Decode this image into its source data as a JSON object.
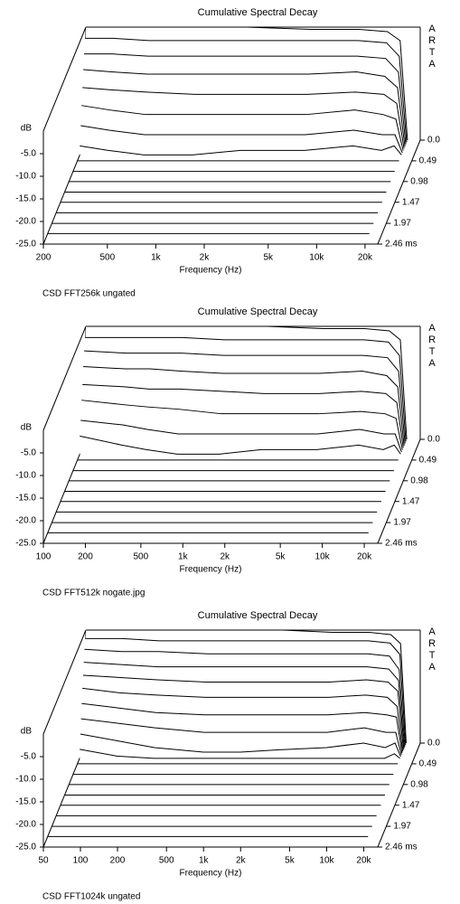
{
  "chart_data": [
    {
      "type": "waterfall",
      "title": "Cumulative Spectral Decay",
      "caption": "CSD FFT256k ungated",
      "watermark": "ARTA",
      "x_label": "Frequency (Hz)",
      "y_label": "dB",
      "log_x": true,
      "x": [
        200,
        300,
        500,
        1000,
        2000,
        5000,
        10000,
        15000,
        18000,
        20000
      ],
      "xlim": [
        200,
        24000
      ],
      "xticks": [
        200,
        500,
        {
          "value": 1000,
          "label": "1k"
        },
        {
          "value": 2000,
          "label": "2k"
        },
        {
          "value": 5000,
          "label": "5k"
        },
        {
          "value": 10000,
          "label": "10k"
        },
        {
          "value": 20000,
          "label": "20k"
        }
      ],
      "ylim": [
        -25,
        0
      ],
      "yticks": [
        {
          "value": -5,
          "label": "-5.0"
        },
        {
          "value": -10,
          "label": "-10.0"
        },
        {
          "value": -15,
          "label": "-15.0"
        },
        {
          "value": -20,
          "label": "-20.0"
        },
        {
          "value": -25,
          "label": "-25.0"
        }
      ],
      "zlim": [
        0,
        2.46
      ],
      "zticks": [
        {
          "value": 0,
          "label": "0.0"
        },
        0.49,
        0.98,
        1.47,
        1.97,
        {
          "value": 2.46,
          "label": "2.46 ms"
        }
      ],
      "z": [
        0,
        0.05,
        0.1,
        0.15,
        0.2,
        0.25,
        0.3,
        0.35,
        0.49,
        0.74,
        0.98,
        1.23,
        1.47,
        1.72,
        1.97,
        2.21,
        2.46
      ],
      "series": [
        {
          "values": [
            0,
            0,
            0,
            0,
            0,
            -0.5,
            -0.5,
            -1,
            -3,
            -25
          ]
        },
        {
          "values": [
            -2,
            -2,
            -2.5,
            -2.5,
            -2.5,
            -2.5,
            -2.5,
            -3,
            -6,
            -25
          ]
        },
        {
          "values": [
            -5,
            -5,
            -5.5,
            -5.5,
            -5.5,
            -5.5,
            -5.5,
            -6,
            -9,
            -25
          ]
        },
        {
          "values": [
            -8,
            -8.5,
            -9,
            -9,
            -9,
            -9,
            -8.5,
            -9.5,
            -12,
            -25
          ]
        },
        {
          "values": [
            -11.5,
            -12,
            -12.5,
            -13,
            -13,
            -13,
            -12.5,
            -13,
            -15,
            -25
          ]
        },
        {
          "values": [
            -15,
            -16,
            -17,
            -17,
            -17,
            -17,
            -16,
            -17,
            -18,
            -25
          ]
        },
        {
          "values": [
            -19,
            -20,
            -21,
            -21,
            -21,
            -21,
            -20,
            -21,
            -21,
            -25
          ]
        },
        {
          "values": [
            -23,
            -24,
            -25,
            -25,
            -24,
            -24,
            -23,
            -24,
            -23,
            -25
          ]
        },
        {
          "values": [
            -25,
            -25,
            -25,
            -25,
            -25,
            -25,
            -25,
            -25,
            -25,
            -25
          ]
        },
        {
          "values": [
            -25,
            -25,
            -25,
            -25,
            -25,
            -25,
            -25,
            -25,
            -25,
            -25
          ]
        },
        {
          "values": [
            -25,
            -25,
            -25,
            -25,
            -25,
            -25,
            -25,
            -25,
            -25,
            -25
          ]
        },
        {
          "values": [
            -25,
            -25,
            -25,
            -25,
            -25,
            -25,
            -25,
            -25,
            -25,
            -25
          ]
        },
        {
          "values": [
            -25,
            -25,
            -25,
            -25,
            -25,
            -25,
            -25,
            -25,
            -25,
            -25
          ]
        },
        {
          "values": [
            -25,
            -25,
            -25,
            -25,
            -25,
            -25,
            -25,
            -25,
            -25,
            -25
          ]
        },
        {
          "values": [
            -25,
            -25,
            -25,
            -25,
            -25,
            -25,
            -25,
            -25,
            -25,
            -25
          ]
        },
        {
          "values": [
            -25,
            -25,
            -25,
            -25,
            -25,
            -25,
            -25,
            -25,
            -25,
            -25
          ]
        },
        {
          "values": [
            -25,
            -25,
            -25,
            -25,
            -25,
            -25,
            -25,
            -25,
            -25,
            -25
          ]
        }
      ]
    },
    {
      "type": "waterfall",
      "title": "Cumulative Spectral Decay",
      "caption": "CSD FFT512k nogate.jpg",
      "watermark": "ARTA",
      "x_label": "Frequency (Hz)",
      "y_label": "dB",
      "log_x": true,
      "x": [
        100,
        200,
        300,
        500,
        1000,
        2000,
        5000,
        10000,
        15000,
        18000,
        20000
      ],
      "xlim": [
        100,
        25000
      ],
      "xticks": [
        100,
        200,
        500,
        {
          "value": 1000,
          "label": "1k"
        },
        {
          "value": 2000,
          "label": "2k"
        },
        {
          "value": 5000,
          "label": "5k"
        },
        {
          "value": 10000,
          "label": "10k"
        },
        {
          "value": 20000,
          "label": "20k"
        }
      ],
      "ylim": [
        -25,
        0
      ],
      "yticks": [
        {
          "value": -5,
          "label": "-5.0"
        },
        {
          "value": -10,
          "label": "-10.0"
        },
        {
          "value": -15,
          "label": "-15.0"
        },
        {
          "value": -20,
          "label": "-20.0"
        },
        {
          "value": -25,
          "label": "-25.0"
        }
      ],
      "zlim": [
        0,
        2.46
      ],
      "zticks": [
        {
          "value": 0,
          "label": "0.0"
        },
        0.49,
        0.98,
        1.47,
        1.97,
        {
          "value": 2.46,
          "label": "2.46 ms"
        }
      ],
      "z": [
        0,
        0.05,
        0.1,
        0.15,
        0.2,
        0.25,
        0.3,
        0.35,
        0.49,
        0.74,
        0.98,
        1.23,
        1.47,
        1.72,
        1.97,
        2.21,
        2.46
      ],
      "series": [
        {
          "values": [
            0,
            0,
            0,
            0,
            0,
            0,
            -0.5,
            -0.5,
            -1,
            -3,
            -25
          ]
        },
        {
          "values": [
            -2,
            -2,
            -2,
            -2,
            -2.5,
            -2.5,
            -2.5,
            -2.5,
            -3,
            -6,
            -25
          ]
        },
        {
          "values": [
            -4.5,
            -5,
            -5,
            -5,
            -5.5,
            -5.5,
            -5.5,
            -5.5,
            -6,
            -9,
            -25
          ]
        },
        {
          "values": [
            -7.5,
            -8,
            -8,
            -8.5,
            -9,
            -9,
            -9,
            -8.5,
            -9.5,
            -12,
            -25
          ]
        },
        {
          "values": [
            -11,
            -11.5,
            -12,
            -12,
            -12.5,
            -13,
            -13,
            -12.5,
            -13,
            -15,
            -25
          ]
        },
        {
          "values": [
            -14,
            -15,
            -15.5,
            -16,
            -17,
            -17,
            -17,
            -16.5,
            -17,
            -18,
            -25
          ]
        },
        {
          "values": [
            -18,
            -19,
            -20,
            -21,
            -21,
            -21,
            -21,
            -20,
            -21,
            -21,
            -25
          ]
        },
        {
          "values": [
            -21,
            -23,
            -24,
            -25,
            -25,
            -24,
            -24,
            -23,
            -24,
            -23,
            -25
          ]
        },
        {
          "values": [
            -25,
            -25,
            -25,
            -25,
            -25,
            -25,
            -25,
            -25,
            -25,
            -25,
            -25
          ]
        },
        {
          "values": [
            -25,
            -25,
            -25,
            -25,
            -25,
            -25,
            -25,
            -25,
            -25,
            -25,
            -25
          ]
        },
        {
          "values": [
            -25,
            -25,
            -25,
            -25,
            -25,
            -25,
            -25,
            -25,
            -25,
            -25,
            -25
          ]
        },
        {
          "values": [
            -25,
            -25,
            -25,
            -25,
            -25,
            -25,
            -25,
            -25,
            -25,
            -25,
            -25
          ]
        },
        {
          "values": [
            -25,
            -25,
            -25,
            -25,
            -25,
            -25,
            -25,
            -25,
            -25,
            -25,
            -25
          ]
        },
        {
          "values": [
            -25,
            -25,
            -25,
            -25,
            -25,
            -25,
            -25,
            -25,
            -25,
            -25,
            -25
          ]
        },
        {
          "values": [
            -25,
            -25,
            -25,
            -25,
            -25,
            -25,
            -25,
            -25,
            -25,
            -25,
            -25
          ]
        },
        {
          "values": [
            -25,
            -25,
            -25,
            -25,
            -25,
            -25,
            -25,
            -25,
            -25,
            -25,
            -25
          ]
        },
        {
          "values": [
            -25,
            -25,
            -25,
            -25,
            -25,
            -25,
            -25,
            -25,
            -25,
            -25,
            -25
          ]
        }
      ]
    },
    {
      "type": "waterfall",
      "title": "Cumulative Spectral Decay",
      "caption": "CSD FFT1024k ungated",
      "watermark": "ARTA",
      "x_label": "Frequency (Hz)",
      "y_label": "dB",
      "log_x": true,
      "x": [
        50,
        100,
        200,
        500,
        1000,
        2000,
        5000,
        10000,
        15000,
        18000,
        20000
      ],
      "xlim": [
        50,
        26000
      ],
      "xticks": [
        50,
        100,
        200,
        500,
        {
          "value": 1000,
          "label": "1k"
        },
        {
          "value": 2000,
          "label": "2k"
        },
        {
          "value": 5000,
          "label": "5k"
        },
        {
          "value": 10000,
          "label": "10k"
        },
        {
          "value": 20000,
          "label": "20k"
        }
      ],
      "ylim": [
        -25,
        0
      ],
      "yticks": [
        {
          "value": -5,
          "label": "-5.0"
        },
        {
          "value": -10,
          "label": "-10.0"
        },
        {
          "value": -15,
          "label": "-15.0"
        },
        {
          "value": -20,
          "label": "-20.0"
        },
        {
          "value": -25,
          "label": "-25.0"
        }
      ],
      "zlim": [
        0,
        2.46
      ],
      "zticks": [
        {
          "value": 0,
          "label": "0.0"
        },
        0.49,
        0.98,
        1.47,
        1.97,
        {
          "value": 2.46,
          "label": "2.46 ms"
        }
      ],
      "z": [
        0,
        0.04,
        0.08,
        0.12,
        0.16,
        0.2,
        0.24,
        0.28,
        0.32,
        0.36,
        0.49,
        0.74,
        0.98,
        1.23,
        1.47,
        1.72,
        1.97,
        2.21,
        2.46
      ],
      "series": [
        {
          "values": [
            0,
            0,
            0,
            0,
            0,
            0,
            -0.5,
            -0.5,
            -1,
            -3,
            -25
          ]
        },
        {
          "values": [
            -1.5,
            -1.5,
            -2,
            -2,
            -2,
            -2,
            -2,
            -2,
            -2.5,
            -5,
            -25
          ]
        },
        {
          "values": [
            -3.5,
            -4,
            -4,
            -4.5,
            -4.5,
            -4.5,
            -4.5,
            -4.5,
            -5,
            -8,
            -25
          ]
        },
        {
          "values": [
            -6,
            -6.5,
            -7,
            -7,
            -7,
            -7,
            -7,
            -7,
            -7.5,
            -10,
            -25
          ]
        },
        {
          "values": [
            -8.5,
            -9,
            -9.5,
            -10,
            -10,
            -10,
            -10,
            -9.5,
            -10,
            -12,
            -25
          ]
        },
        {
          "values": [
            -11,
            -12,
            -12.5,
            -13,
            -13,
            -13,
            -13,
            -12.5,
            -13,
            -15,
            -25
          ]
        },
        {
          "values": [
            -14,
            -15,
            -16,
            -16.5,
            -16.5,
            -16.5,
            -16.5,
            -16,
            -16.5,
            -17,
            -25
          ]
        },
        {
          "values": [
            -17,
            -18,
            -19,
            -20,
            -20,
            -20,
            -20,
            -19,
            -20,
            -20,
            -25
          ]
        },
        {
          "values": [
            -20,
            -21.5,
            -23,
            -24,
            -24,
            -23.5,
            -23,
            -22,
            -23,
            -22,
            -25
          ]
        },
        {
          "values": [
            -23,
            -24.5,
            -25,
            -25,
            -25,
            -25,
            -25,
            -25,
            -25,
            -24,
            -25
          ]
        },
        {
          "values": [
            -25,
            -25,
            -25,
            -25,
            -25,
            -25,
            -25,
            -25,
            -25,
            -25,
            -25
          ]
        },
        {
          "values": [
            -25,
            -25,
            -25,
            -25,
            -25,
            -25,
            -25,
            -25,
            -25,
            -25,
            -25
          ]
        },
        {
          "values": [
            -25,
            -25,
            -25,
            -25,
            -25,
            -25,
            -25,
            -25,
            -25,
            -25,
            -25
          ]
        },
        {
          "values": [
            -25,
            -25,
            -25,
            -25,
            -25,
            -25,
            -25,
            -25,
            -25,
            -25,
            -25
          ]
        },
        {
          "values": [
            -25,
            -25,
            -25,
            -25,
            -25,
            -25,
            -25,
            -25,
            -25,
            -25,
            -25
          ]
        },
        {
          "values": [
            -25,
            -25,
            -25,
            -25,
            -25,
            -25,
            -25,
            -25,
            -25,
            -25,
            -25
          ]
        },
        {
          "values": [
            -25,
            -25,
            -25,
            -25,
            -25,
            -25,
            -25,
            -25,
            -25,
            -25,
            -25
          ]
        },
        {
          "values": [
            -25,
            -25,
            -25,
            -25,
            -25,
            -25,
            -25,
            -25,
            -25,
            -25,
            -25
          ]
        },
        {
          "values": [
            -25,
            -25,
            -25,
            -25,
            -25,
            -25,
            -25,
            -25,
            -25,
            -25,
            -25
          ]
        }
      ]
    }
  ]
}
